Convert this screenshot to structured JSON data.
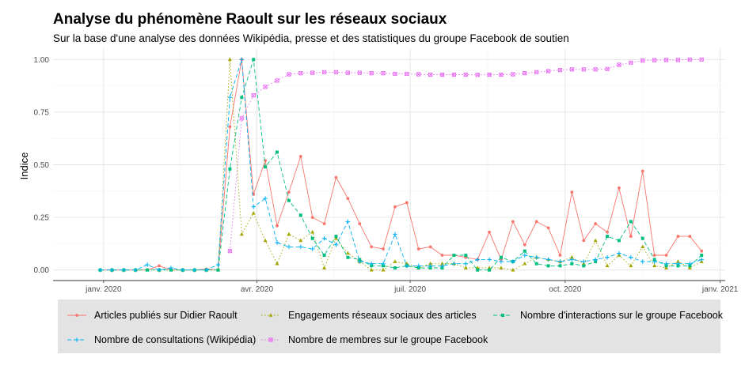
{
  "title": "Analyse du phénomène Raoult sur les réseaux sociaux",
  "subtitle": "Sur la base d'une analyse des données Wikipédia, presse et des statistiques du groupe Facebook de soutien",
  "chart_data": {
    "type": "line",
    "title": "Analyse du phénomène Raoult sur les réseaux sociaux",
    "subtitle": "Sur la base d'une analyse des données Wikipédia, presse et des statistiques du groupe Facebook de soutien",
    "xlabel": "",
    "ylabel": "Indice",
    "x_ticks": [
      "janv. 2020",
      "avr. 2020",
      "juil. 2020",
      "oct. 2020",
      "janv. 2021"
    ],
    "x_tick_dates": [
      "2020-01-01",
      "2020-04-01",
      "2020-07-01",
      "2020-10-01",
      "2021-01-01"
    ],
    "y_ticks": [
      "0.00",
      "0.25",
      "0.50",
      "0.75",
      "1.00"
    ],
    "xlim": [
      "2019-12-02",
      "2021-01-04"
    ],
    "ylim": [
      -0.05,
      1.05
    ],
    "grid": true,
    "legend_position": "bottom",
    "series": [
      {
        "name": "Articles publiés sur Didier Raoult",
        "color": "#F8766D",
        "linestyle": "solid",
        "marker": "point",
        "points": [
          [
            "2019-12-30",
            0
          ],
          [
            "2020-01-06",
            0
          ],
          [
            "2020-01-13",
            0
          ],
          [
            "2020-01-20",
            0
          ],
          [
            "2020-01-27",
            0
          ],
          [
            "2020-02-03",
            0.02
          ],
          [
            "2020-02-10",
            0
          ],
          [
            "2020-02-17",
            0
          ],
          [
            "2020-02-24",
            0
          ],
          [
            "2020-03-02",
            0.005
          ],
          [
            "2020-03-09",
            0
          ],
          [
            "2020-03-16",
            0.68
          ],
          [
            "2020-03-23",
            1.0
          ],
          [
            "2020-03-30",
            0.36
          ],
          [
            "2020-04-06",
            0.52
          ],
          [
            "2020-04-13",
            0.21
          ],
          [
            "2020-04-20",
            0.37
          ],
          [
            "2020-04-27",
            0.54
          ],
          [
            "2020-05-04",
            0.25
          ],
          [
            "2020-05-11",
            0.22
          ],
          [
            "2020-05-18",
            0.44
          ],
          [
            "2020-05-25",
            0.34
          ],
          [
            "2020-06-01",
            0.22
          ],
          [
            "2020-06-08",
            0.11
          ],
          [
            "2020-06-15",
            0.1
          ],
          [
            "2020-06-22",
            0.3
          ],
          [
            "2020-06-29",
            0.32
          ],
          [
            "2020-07-06",
            0.1
          ],
          [
            "2020-07-13",
            0.11
          ],
          [
            "2020-07-20",
            0.07
          ],
          [
            "2020-07-27",
            0.07
          ],
          [
            "2020-08-03",
            0.06
          ],
          [
            "2020-08-10",
            0.05
          ],
          [
            "2020-08-17",
            0.18
          ],
          [
            "2020-08-24",
            0.05
          ],
          [
            "2020-08-31",
            0.23
          ],
          [
            "2020-09-07",
            0.12
          ],
          [
            "2020-09-14",
            0.23
          ],
          [
            "2020-09-21",
            0.2
          ],
          [
            "2020-09-28",
            0.07
          ],
          [
            "2020-10-05",
            0.37
          ],
          [
            "2020-10-12",
            0.14
          ],
          [
            "2020-10-19",
            0.22
          ],
          [
            "2020-10-26",
            0.18
          ],
          [
            "2020-11-02",
            0.39
          ],
          [
            "2020-11-09",
            0.16
          ],
          [
            "2020-11-16",
            0.47
          ],
          [
            "2020-11-23",
            0.07
          ],
          [
            "2020-11-30",
            0.07
          ],
          [
            "2020-12-07",
            0.16
          ],
          [
            "2020-12-14",
            0.16
          ],
          [
            "2020-12-21",
            0.09
          ]
        ]
      },
      {
        "name": "Engagements réseaux sociaux des articles",
        "color": "#A3A500",
        "linestyle": "dotted",
        "marker": "triangle",
        "points": [
          [
            "2019-12-30",
            0
          ],
          [
            "2020-01-06",
            0
          ],
          [
            "2020-01-13",
            0
          ],
          [
            "2020-01-20",
            0
          ],
          [
            "2020-01-27",
            0
          ],
          [
            "2020-02-03",
            0
          ],
          [
            "2020-02-10",
            0
          ],
          [
            "2020-02-17",
            0
          ],
          [
            "2020-02-24",
            0
          ],
          [
            "2020-03-02",
            0
          ],
          [
            "2020-03-09",
            0
          ],
          [
            "2020-03-16",
            1.0
          ],
          [
            "2020-03-23",
            0.17
          ],
          [
            "2020-03-30",
            0.27
          ],
          [
            "2020-04-06",
            0.14
          ],
          [
            "2020-04-13",
            0.03
          ],
          [
            "2020-04-20",
            0.17
          ],
          [
            "2020-04-27",
            0.14
          ],
          [
            "2020-05-04",
            0.18
          ],
          [
            "2020-05-11",
            0.01
          ],
          [
            "2020-05-18",
            0.15
          ],
          [
            "2020-05-25",
            0.08
          ],
          [
            "2020-06-01",
            0.04
          ],
          [
            "2020-06-08",
            0.0
          ],
          [
            "2020-06-15",
            0.0
          ],
          [
            "2020-06-22",
            0.04
          ],
          [
            "2020-06-29",
            0.03
          ],
          [
            "2020-07-06",
            0.01
          ],
          [
            "2020-07-13",
            0.03
          ],
          [
            "2020-07-20",
            0.03
          ],
          [
            "2020-07-27",
            0.03
          ],
          [
            "2020-08-03",
            0.01
          ],
          [
            "2020-08-10",
            0.01
          ],
          [
            "2020-08-17",
            0.01
          ],
          [
            "2020-08-24",
            0.01
          ],
          [
            "2020-08-31",
            0.0
          ],
          [
            "2020-09-07",
            0.03
          ],
          [
            "2020-09-14",
            0.06
          ],
          [
            "2020-09-21",
            0.05
          ],
          [
            "2020-09-28",
            0.04
          ],
          [
            "2020-10-05",
            0.06
          ],
          [
            "2020-10-12",
            0.03
          ],
          [
            "2020-10-19",
            0.14
          ],
          [
            "2020-10-26",
            0.02
          ],
          [
            "2020-11-02",
            0.07
          ],
          [
            "2020-11-09",
            0.02
          ],
          [
            "2020-11-16",
            0.11
          ],
          [
            "2020-11-23",
            0.02
          ],
          [
            "2020-11-30",
            0.01
          ],
          [
            "2020-12-07",
            0.04
          ],
          [
            "2020-12-14",
            0.01
          ],
          [
            "2020-12-21",
            0.04
          ]
        ]
      },
      {
        "name": "Nombre d'interactions sur le groupe Facebook",
        "color": "#00BF7D",
        "linestyle": "dashed",
        "marker": "square",
        "points": [
          [
            "2019-12-30",
            0
          ],
          [
            "2020-01-06",
            0
          ],
          [
            "2020-01-13",
            0
          ],
          [
            "2020-01-20",
            0
          ],
          [
            "2020-01-27",
            0
          ],
          [
            "2020-02-03",
            0
          ],
          [
            "2020-02-10",
            0
          ],
          [
            "2020-02-17",
            0
          ],
          [
            "2020-02-24",
            0
          ],
          [
            "2020-03-02",
            0
          ],
          [
            "2020-03-09",
            0
          ],
          [
            "2020-03-16",
            0.48
          ],
          [
            "2020-03-23",
            0.82
          ],
          [
            "2020-03-30",
            1.0
          ],
          [
            "2020-04-06",
            0.49
          ],
          [
            "2020-04-13",
            0.56
          ],
          [
            "2020-04-20",
            0.33
          ],
          [
            "2020-04-27",
            0.26
          ],
          [
            "2020-05-04",
            0.15
          ],
          [
            "2020-05-11",
            0.07
          ],
          [
            "2020-05-18",
            0.16
          ],
          [
            "2020-05-25",
            0.06
          ],
          [
            "2020-06-01",
            0.05
          ],
          [
            "2020-06-08",
            0.02
          ],
          [
            "2020-06-15",
            0.02
          ],
          [
            "2020-06-22",
            0.01
          ],
          [
            "2020-06-29",
            0.02
          ],
          [
            "2020-07-06",
            0.01
          ],
          [
            "2020-07-13",
            0.01
          ],
          [
            "2020-07-20",
            0.01
          ],
          [
            "2020-07-27",
            0.07
          ],
          [
            "2020-08-03",
            0.07
          ],
          [
            "2020-08-10",
            0.0
          ],
          [
            "2020-08-17",
            0.0
          ],
          [
            "2020-08-24",
            0.06
          ],
          [
            "2020-08-31",
            0.04
          ],
          [
            "2020-09-07",
            0.09
          ],
          [
            "2020-09-14",
            0.03
          ],
          [
            "2020-09-21",
            0.02
          ],
          [
            "2020-09-28",
            0.02
          ],
          [
            "2020-10-05",
            0.03
          ],
          [
            "2020-10-12",
            0.02
          ],
          [
            "2020-10-19",
            0.04
          ],
          [
            "2020-10-26",
            0.16
          ],
          [
            "2020-11-02",
            0.14
          ],
          [
            "2020-11-09",
            0.23
          ],
          [
            "2020-11-16",
            0.15
          ],
          [
            "2020-11-23",
            0.05
          ],
          [
            "2020-11-30",
            0.02
          ],
          [
            "2020-12-07",
            0.02
          ],
          [
            "2020-12-14",
            0.02
          ],
          [
            "2020-12-21",
            0.07
          ]
        ]
      },
      {
        "name": "Nombre de consultations (Wikipédia)",
        "color": "#00B0F6",
        "linestyle": "dashed",
        "marker": "plus",
        "points": [
          [
            "2019-12-30",
            0
          ],
          [
            "2020-01-06",
            0
          ],
          [
            "2020-01-13",
            0
          ],
          [
            "2020-01-20",
            0
          ],
          [
            "2020-01-27",
            0.025
          ],
          [
            "2020-02-03",
            0
          ],
          [
            "2020-02-10",
            0.01
          ],
          [
            "2020-02-17",
            0
          ],
          [
            "2020-02-24",
            0
          ],
          [
            "2020-03-02",
            0
          ],
          [
            "2020-03-09",
            0.025
          ],
          [
            "2020-03-16",
            0.82
          ],
          [
            "2020-03-23",
            1.0
          ],
          [
            "2020-03-30",
            0.3
          ],
          [
            "2020-04-06",
            0.34
          ],
          [
            "2020-04-13",
            0.13
          ],
          [
            "2020-04-20",
            0.11
          ],
          [
            "2020-04-27",
            0.11
          ],
          [
            "2020-05-04",
            0.1
          ],
          [
            "2020-05-11",
            0.15
          ],
          [
            "2020-05-18",
            0.12
          ],
          [
            "2020-05-25",
            0.23
          ],
          [
            "2020-06-01",
            0.04
          ],
          [
            "2020-06-08",
            0.03
          ],
          [
            "2020-06-15",
            0.03
          ],
          [
            "2020-06-22",
            0.17
          ],
          [
            "2020-06-29",
            0.02
          ],
          [
            "2020-07-06",
            0.02
          ],
          [
            "2020-07-13",
            0.02
          ],
          [
            "2020-07-20",
            0.02
          ],
          [
            "2020-07-27",
            0.03
          ],
          [
            "2020-08-03",
            0.03
          ],
          [
            "2020-08-10",
            0.05
          ],
          [
            "2020-08-17",
            0.05
          ],
          [
            "2020-08-24",
            0.04
          ],
          [
            "2020-08-31",
            0.04
          ],
          [
            "2020-09-07",
            0.07
          ],
          [
            "2020-09-14",
            0.06
          ],
          [
            "2020-09-21",
            0.05
          ],
          [
            "2020-09-28",
            0.04
          ],
          [
            "2020-10-05",
            0.05
          ],
          [
            "2020-10-12",
            0.04
          ],
          [
            "2020-10-19",
            0.05
          ],
          [
            "2020-10-26",
            0.06
          ],
          [
            "2020-11-02",
            0.08
          ],
          [
            "2020-11-09",
            0.06
          ],
          [
            "2020-11-16",
            0.04
          ],
          [
            "2020-11-23",
            0.04
          ],
          [
            "2020-11-30",
            0.03
          ],
          [
            "2020-12-07",
            0.03
          ],
          [
            "2020-12-14",
            0.03
          ],
          [
            "2020-12-21",
            0.05
          ]
        ]
      },
      {
        "name": "Nombre de membres sur le groupe Facebook",
        "color": "#E76BF3",
        "linestyle": "dotted",
        "marker": "square-cross",
        "points": [
          [
            "2020-03-16",
            0.09
          ],
          [
            "2020-03-23",
            0.72
          ],
          [
            "2020-03-30",
            0.83
          ],
          [
            "2020-04-06",
            0.87
          ],
          [
            "2020-04-13",
            0.9
          ],
          [
            "2020-04-20",
            0.93
          ],
          [
            "2020-04-27",
            0.935
          ],
          [
            "2020-05-04",
            0.937
          ],
          [
            "2020-05-11",
            0.94
          ],
          [
            "2020-05-18",
            0.94
          ],
          [
            "2020-05-25",
            0.937
          ],
          [
            "2020-06-01",
            0.937
          ],
          [
            "2020-06-08",
            0.935
          ],
          [
            "2020-06-15",
            0.935
          ],
          [
            "2020-06-22",
            0.932
          ],
          [
            "2020-06-29",
            0.932
          ],
          [
            "2020-07-06",
            0.93
          ],
          [
            "2020-07-13",
            0.928
          ],
          [
            "2020-07-20",
            0.928
          ],
          [
            "2020-07-27",
            0.928
          ],
          [
            "2020-08-03",
            0.928
          ],
          [
            "2020-08-10",
            0.927
          ],
          [
            "2020-08-17",
            0.928
          ],
          [
            "2020-08-24",
            0.928
          ],
          [
            "2020-08-31",
            0.93
          ],
          [
            "2020-09-07",
            0.935
          ],
          [
            "2020-09-14",
            0.94
          ],
          [
            "2020-09-21",
            0.945
          ],
          [
            "2020-09-28",
            0.95
          ],
          [
            "2020-10-05",
            0.953
          ],
          [
            "2020-10-12",
            0.953
          ],
          [
            "2020-10-19",
            0.953
          ],
          [
            "2020-10-26",
            0.955
          ],
          [
            "2020-11-02",
            0.975
          ],
          [
            "2020-11-09",
            0.985
          ],
          [
            "2020-11-16",
            0.995
          ],
          [
            "2020-11-23",
            0.997
          ],
          [
            "2020-11-30",
            0.998
          ],
          [
            "2020-12-07",
            0.998
          ],
          [
            "2020-12-14",
            1.0
          ],
          [
            "2020-12-21",
            1.0
          ]
        ]
      }
    ]
  }
}
